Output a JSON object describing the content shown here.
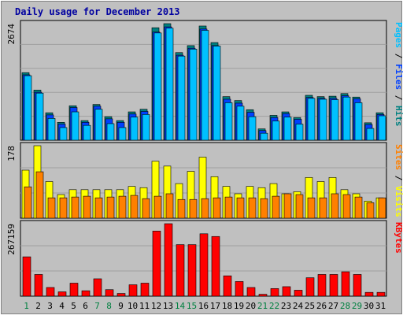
{
  "chart_data": {
    "title": "Daily usage for December 2013",
    "type": "bar",
    "categories": [
      "1",
      "2",
      "3",
      "4",
      "5",
      "6",
      "7",
      "8",
      "9",
      "10",
      "11",
      "12",
      "13",
      "14",
      "15",
      "16",
      "17",
      "18",
      "19",
      "20",
      "21",
      "22",
      "23",
      "24",
      "25",
      "26",
      "27",
      "28",
      "29",
      "30",
      "31"
    ],
    "weekend_days": [
      "1",
      "7",
      "8",
      "14",
      "15",
      "21",
      "22",
      "28",
      "29"
    ],
    "panels": [
      {
        "id": "top",
        "scale_label": "2674",
        "ylim": [
          0,
          2674
        ],
        "legend": [
          {
            "label": "Pages",
            "color": "#00c0ff"
          },
          {
            "label": "Files",
            "color": "#0040ff"
          },
          {
            "label": "Hits",
            "color": "#008080"
          }
        ],
        "series": [
          {
            "name": "Hits",
            "color": "#008080",
            "values": [
              1550,
              1150,
              630,
              410,
              790,
              450,
              820,
              540,
              450,
              650,
              710,
              2580,
              2674,
              2010,
              2170,
              2620,
              2240,
              1000,
              910,
              700,
              260,
              570,
              650,
              520,
              1030,
              1000,
              1010,
              1070,
              990,
              400,
              630
            ]
          },
          {
            "name": "Files",
            "color": "#0040ff",
            "values": [
              1500,
              1100,
              580,
              370,
              750,
              410,
              780,
              490,
              410,
              600,
              660,
              2480,
              2600,
              1950,
              2110,
              2550,
              2170,
              940,
              850,
              640,
              220,
              520,
              610,
              480,
              980,
              960,
              960,
              1020,
              950,
              360,
              590
            ]
          },
          {
            "name": "Pages",
            "color": "#00c0ff",
            "values": [
              1480,
              1080,
              500,
              290,
              650,
              340,
              710,
              380,
              290,
              530,
              590,
              2460,
              2570,
              1930,
              2090,
              2520,
              2160,
              860,
              780,
              540,
              160,
              440,
              530,
              370,
              960,
              940,
              930,
              990,
              860,
              270,
              560
            ]
          }
        ]
      },
      {
        "id": "middle",
        "scale_label": "178",
        "ylim": [
          0,
          178
        ],
        "legend": [
          {
            "label": "Sites",
            "color": "#ff8000"
          },
          {
            "label": "Visits",
            "color": "#ffff00"
          }
        ],
        "series": [
          {
            "name": "Visits",
            "color": "#ffff00",
            "values": [
              118,
              178,
              90,
              58,
              70,
              70,
              70,
              70,
              70,
              78,
              75,
              140,
              128,
              85,
              115,
              150,
              102,
              78,
              60,
              78,
              75,
              85,
              60,
              65,
              100,
              90,
              100,
              70,
              60,
              42,
              50
            ]
          },
          {
            "name": "Sites",
            "color": "#ff8000",
            "values": [
              77,
              114,
              50,
              50,
              52,
              54,
              50,
              52,
              54,
              56,
              48,
              54,
              60,
              46,
              46,
              48,
              50,
              52,
              50,
              50,
              48,
              54,
              60,
              58,
              50,
              50,
              60,
              58,
              52,
              38,
              50
            ]
          }
        ]
      },
      {
        "id": "bottom",
        "scale_label": "267159",
        "ylim": [
          0,
          267159
        ],
        "legend": [
          {
            "label": "KBytes",
            "color": "#ff0000"
          }
        ],
        "series": [
          {
            "name": "KBytes",
            "color": "#ff0000",
            "values": [
              145000,
              80000,
              32000,
              16000,
              48000,
              20000,
              64000,
              24000,
              10000,
              42000,
              48000,
              240000,
              267159,
              190000,
              190000,
              230000,
              220000,
              75000,
              54000,
              32000,
              7000,
              28000,
              35000,
              22000,
              68000,
              80000,
              80000,
              90000,
              80000,
              14000,
              14000
            ]
          }
        ]
      }
    ]
  }
}
